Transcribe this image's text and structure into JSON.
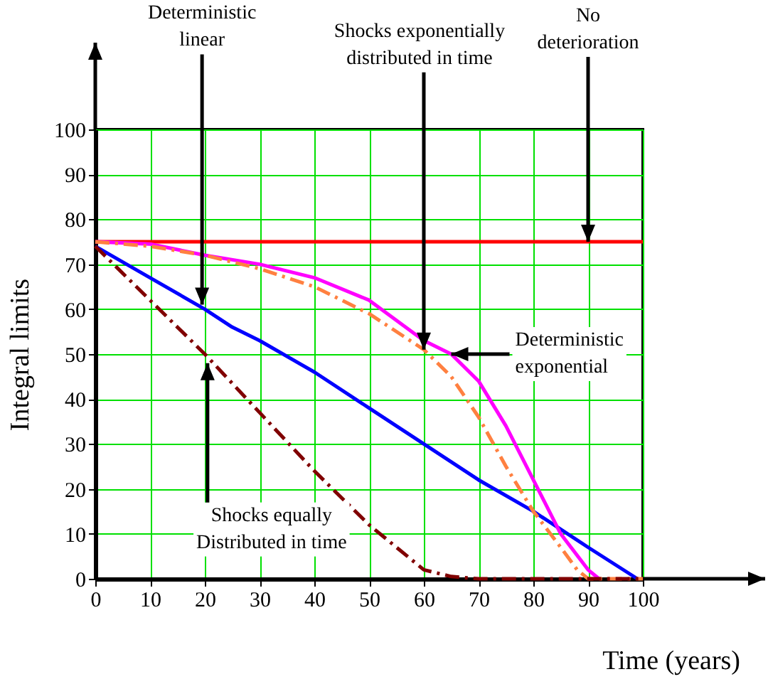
{
  "chart_data": {
    "type": "line",
    "xlabel": "Time (years)",
    "ylabel": "Integral limits",
    "xlim": [
      0,
      100
    ],
    "ylim": [
      0,
      100
    ],
    "xticks": [
      0,
      10,
      20,
      30,
      40,
      50,
      60,
      70,
      80,
      90,
      100
    ],
    "yticks": [
      0,
      10,
      20,
      30,
      40,
      50,
      60,
      70,
      80,
      90,
      100
    ],
    "grid": true,
    "series": [
      {
        "color": "#ff0000",
        "line_style": "solid",
        "x": [
          0,
          100
        ],
        "values": [
          75,
          75
        ]
      },
      {
        "color": "#0000ff",
        "line_style": "solid",
        "x": [
          0,
          10,
          20,
          25,
          30,
          40,
          50,
          60,
          70,
          80,
          90,
          99
        ],
        "values": [
          74,
          67,
          60,
          56,
          53,
          46,
          38,
          30,
          22,
          15,
          7,
          0
        ]
      },
      {
        "color": "#ff00ff",
        "line_style": "solid",
        "x": [
          0,
          10,
          20,
          30,
          40,
          50,
          60,
          65,
          70,
          75,
          80,
          85,
          90,
          92
        ],
        "values": [
          75,
          74.5,
          72,
          70,
          67,
          62,
          53,
          50,
          44,
          34,
          22,
          10,
          2,
          0
        ]
      },
      {
        "color": "#ff8040",
        "line_style": "dashed",
        "x": [
          0,
          10,
          20,
          30,
          40,
          50,
          60,
          65,
          70,
          75,
          80,
          85,
          88,
          90,
          100
        ],
        "values": [
          75,
          74,
          72,
          69,
          65,
          59,
          51,
          45,
          36,
          25,
          15,
          7,
          2,
          0,
          0
        ]
      },
      {
        "color": "#800000",
        "line_style": "dashed",
        "x": [
          0,
          10,
          20,
          30,
          40,
          50,
          55,
          60,
          65,
          70,
          100
        ],
        "values": [
          74,
          62,
          50,
          37,
          24,
          12,
          7,
          2,
          0.5,
          0,
          0
        ]
      }
    ],
    "annotations": [
      {
        "text": "Deterministic\nlinear",
        "x": 19.5,
        "y": 61
      },
      {
        "text": "Shocks exponentially\ndistributed in time",
        "x": 60,
        "y": 51
      },
      {
        "text": "No\ndeterioration",
        "x": 90,
        "y": 75
      },
      {
        "text": "Deterministic\nexponential",
        "x": 65,
        "y": 50
      },
      {
        "text": "Shocks equally\nDistributed in time",
        "x": 20.5,
        "y": 48
      }
    ]
  }
}
